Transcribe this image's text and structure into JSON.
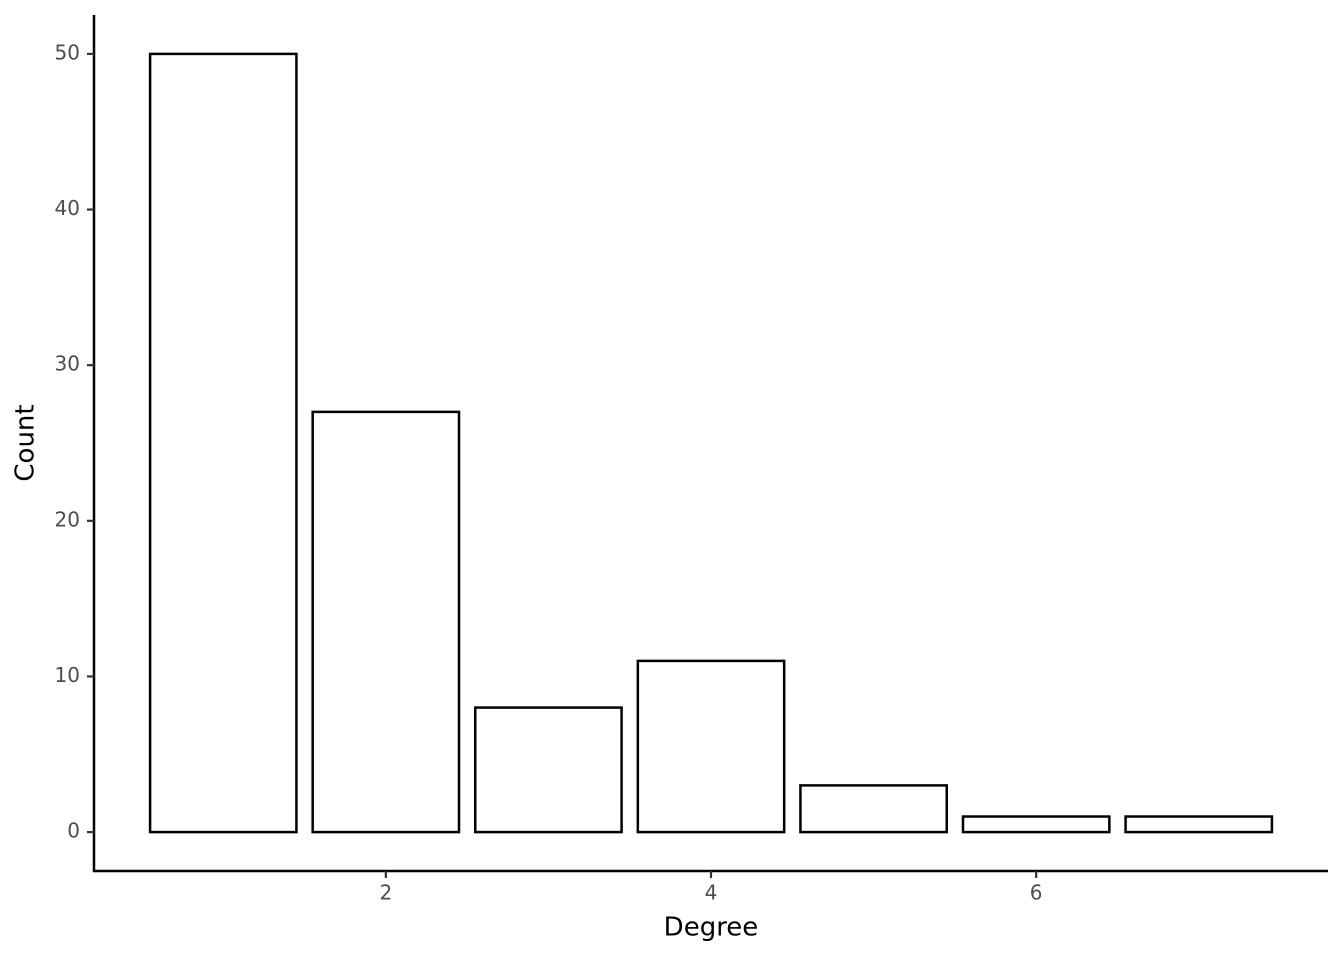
{
  "chart_data": {
    "type": "bar",
    "x_label": "Degree",
    "y_label": "Count",
    "x": [
      1,
      2,
      3,
      4,
      5,
      6,
      7
    ],
    "values": [
      50,
      27,
      8,
      11,
      3,
      1,
      1
    ],
    "color": "#ffffff",
    "edge_color": "#000000",
    "xlim": [
      0.205,
      7.795
    ],
    "xticks": [
      2,
      4,
      6
    ],
    "ylim": [
      -2.5,
      52.5
    ],
    "yticks": [
      0,
      10,
      20,
      30,
      40,
      50
    ],
    "grid": false
  }
}
